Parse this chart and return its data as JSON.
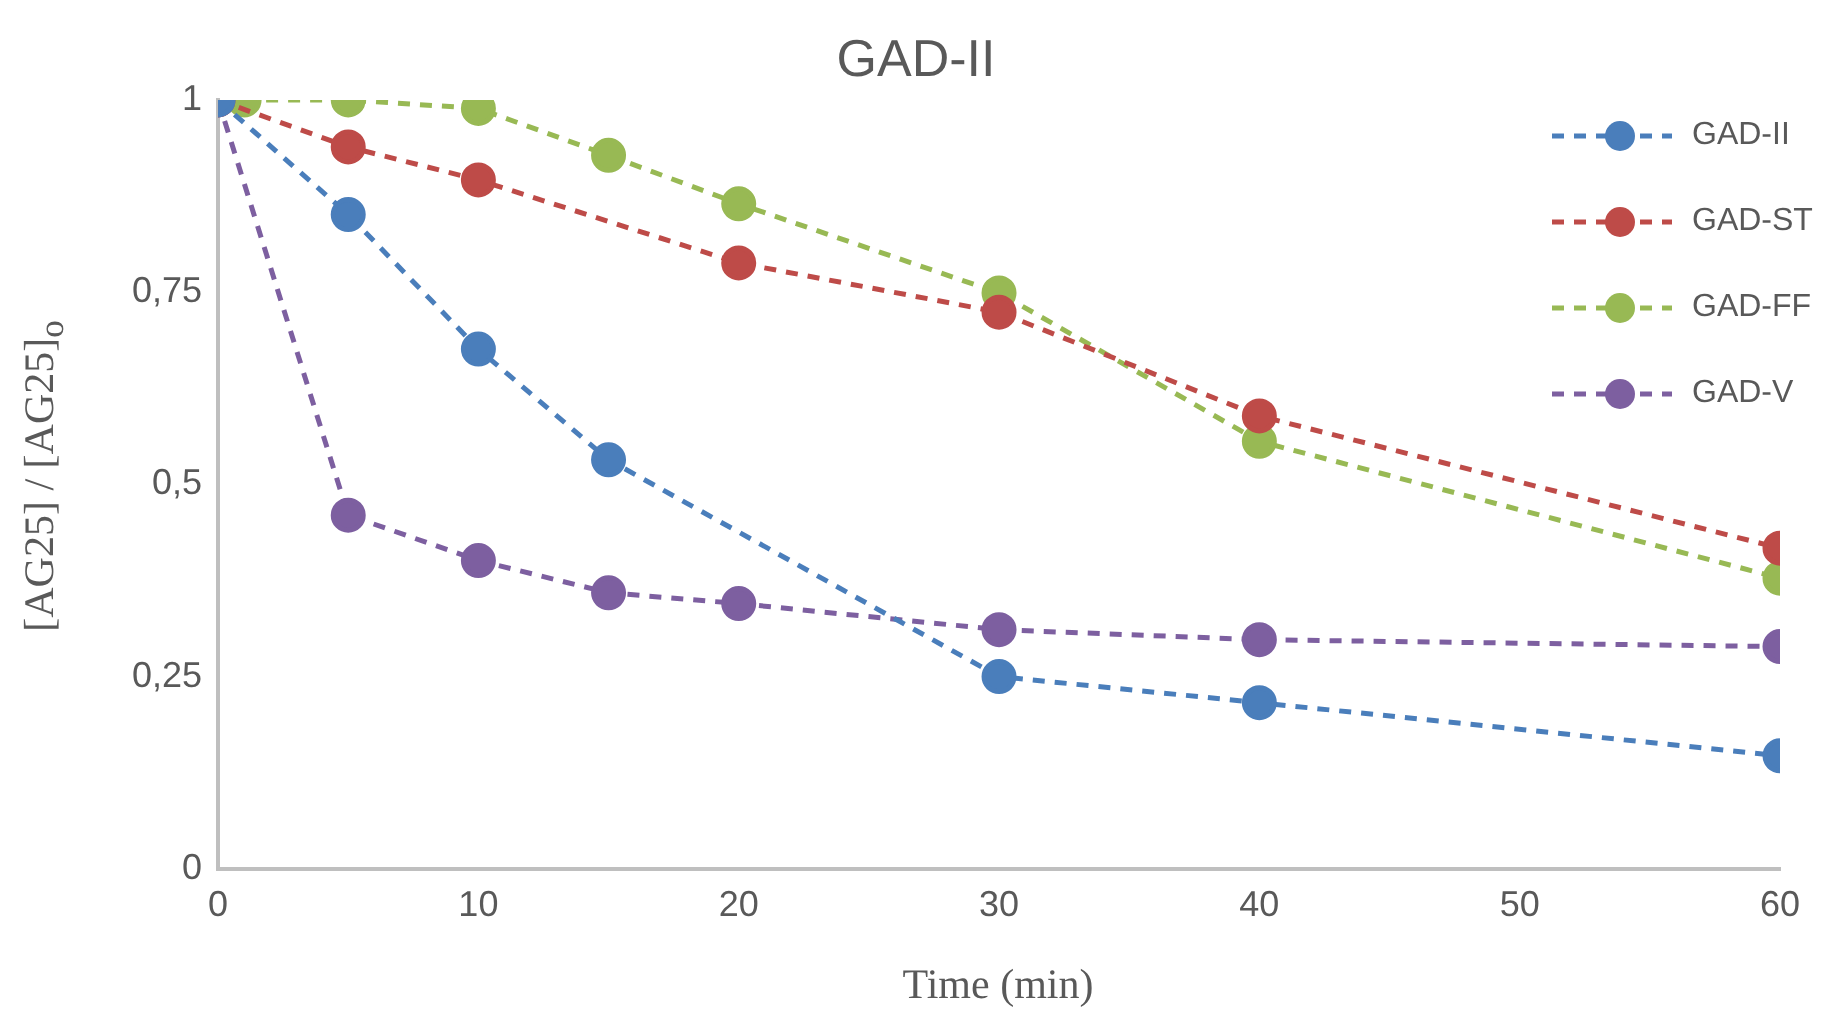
{
  "chart_data": {
    "type": "line",
    "title": "GAD-II",
    "xlabel": "Time (min)",
    "ylabel": "[AG25] / [AG25]$_{o}$",
    "xlim": [
      0,
      60
    ],
    "xticks": [
      0,
      10,
      20,
      30,
      40,
      50,
      60
    ],
    "ylim": [
      0,
      1
    ],
    "yticks": [
      0,
      {
        "value": 0.25,
        "label": "0,25"
      },
      {
        "value": 0.5,
        "label": "0,5"
      },
      {
        "value": 0.75,
        "label": "0,75"
      },
      1
    ],
    "grid": false,
    "legend": "top right",
    "marker": "circle",
    "line_style": "dashed",
    "series": [
      {
        "name": "GAD-II",
        "color": "#4a7ebb",
        "x": [
          0,
          5,
          10,
          15,
          30,
          40,
          60
        ],
        "values": [
          1,
          0.851,
          0.676,
          0.532,
          0.25,
          0.216,
          0.147
        ]
      },
      {
        "name": "GAD-ST",
        "color": "#be4b48",
        "x": [
          0,
          5,
          10,
          20,
          30,
          40,
          60
        ],
        "values": [
          1,
          0.939,
          0.896,
          0.788,
          0.724,
          0.589,
          0.417
        ]
      },
      {
        "name": "GAD-FF",
        "color": "#98b954",
        "x": [
          1,
          5,
          10,
          15,
          20,
          30,
          40,
          60
        ],
        "values": [
          1,
          1,
          0.989,
          0.928,
          0.865,
          0.749,
          0.556,
          0.378
        ]
      },
      {
        "name": "GAD-V",
        "color": "#7d5fa0",
        "x": [
          0,
          5,
          10,
          15,
          20,
          30,
          40,
          60
        ],
        "values": [
          1,
          0.46,
          0.401,
          0.359,
          0.345,
          0.311,
          0.298,
          0.289
        ]
      }
    ]
  }
}
